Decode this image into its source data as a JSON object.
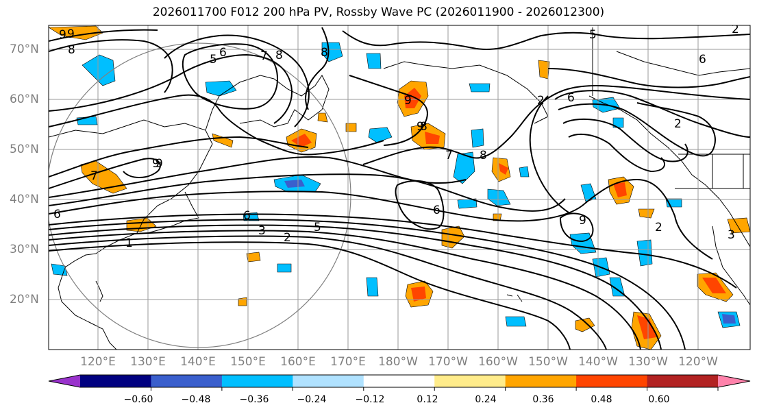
{
  "title": "2026011700 F012 200 hPa PV, Rossby Wave PC (2026011900 - 2026012300)",
  "lat_labels": [
    "70°N",
    "60°N",
    "50°N",
    "40°N",
    "30°N",
    "20°N"
  ],
  "lon_labels": [
    "120°E",
    "130°E",
    "140°E",
    "150°E",
    "160°E",
    "170°E",
    "180°W",
    "170°W",
    "160°W",
    "150°W",
    "140°W",
    "130°W",
    "120°W"
  ],
  "colorbar": {
    "colors": [
      "#9932cc",
      "#000080",
      "#3a5fcd",
      "#00bfff",
      "#b0e2ff",
      "#ffffff",
      "#ffec8b",
      "#ffa500",
      "#ff4500",
      "#b22222",
      "#ff82ab"
    ],
    "tick_labels": [
      "−0.60",
      "−0.48",
      "−0.36",
      "−0.24",
      "−0.12",
      "0.12",
      "0.24",
      "0.36",
      "0.48",
      "0.60"
    ]
  },
  "contour_labels": [
    "9",
    "8",
    "9",
    "6",
    "5",
    "7",
    "8",
    "8",
    "5",
    "2",
    "9",
    "9",
    "7",
    "6",
    "6",
    "3",
    "2",
    "5",
    "1",
    "6",
    "9",
    "8",
    "8",
    "9",
    "9",
    "7",
    "6",
    "2",
    "2",
    "2",
    "3",
    "6"
  ]
}
